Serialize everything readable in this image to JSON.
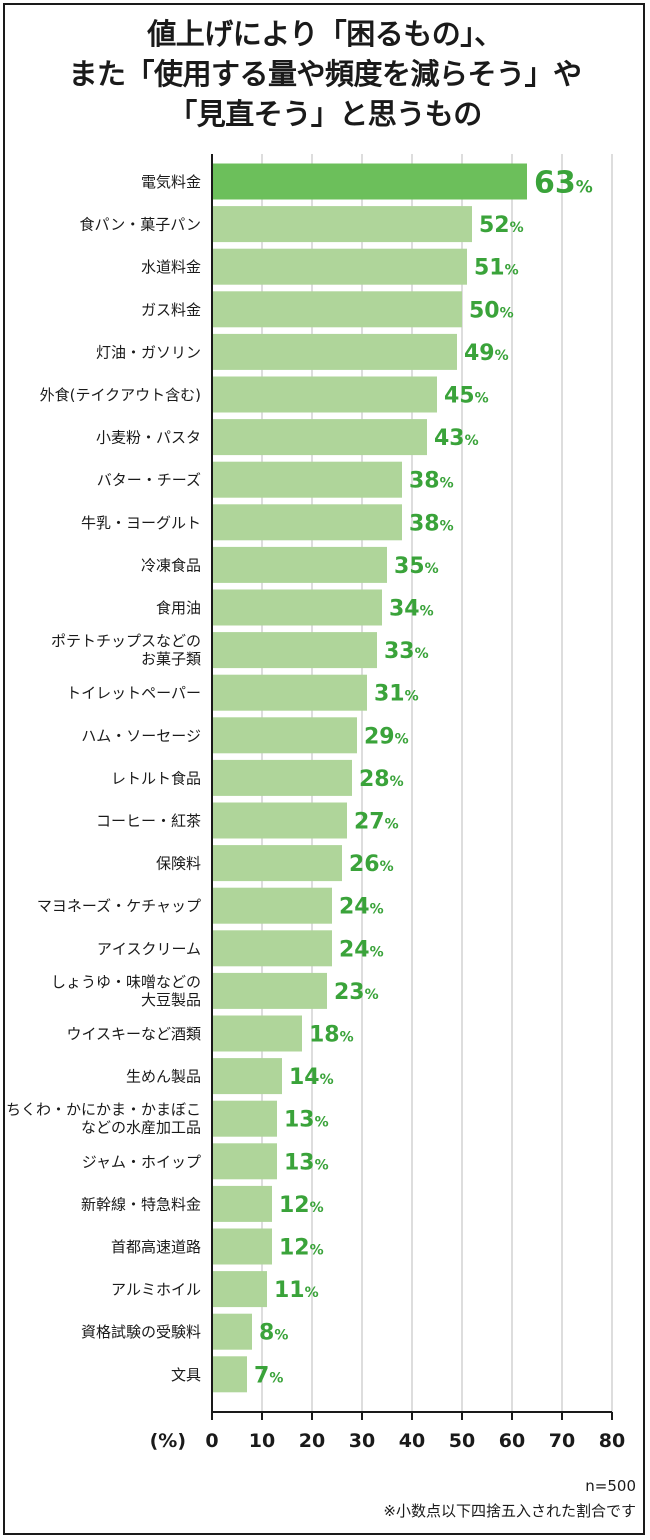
{
  "title_lines": [
    "値上げにより「困るもの」、",
    "また「使用する量や頻度を減らそう」や",
    "「見直そう」と思うもの"
  ],
  "colors": {
    "highlight_bar": "#6cbf5b",
    "bar": "#afd59a",
    "value_text": "#3aa33a",
    "grid": "#bbbbbb",
    "axis": "#1a1a1a"
  },
  "chart_data": {
    "type": "bar",
    "orientation": "horizontal",
    "categories": [
      "電気料金",
      "食パン・菓子パン",
      "水道料金",
      "ガス料金",
      "灯油・ガソリン",
      "外食(テイクアウト含む)",
      "小麦粉・パスタ",
      "バター・チーズ",
      "牛乳・ヨーグルト",
      "冷凍食品",
      "食用油",
      "ポテトチップスなどの\nお菓子類",
      "トイレットペーパー",
      "ハム・ソーセージ",
      "レトルト食品",
      "コーヒー・紅茶",
      "保険料",
      "マヨネーズ・ケチャップ",
      "アイスクリーム",
      "しょうゆ・味噌などの\n大豆製品",
      "ウイスキーなど酒類",
      "生めん製品",
      "ちくわ・かにかま・かまぼこ\nなどの水産加工品",
      "ジャム・ホイップ",
      "新幹線・特急料金",
      "首都高速道路",
      "アルミホイル",
      "資格試験の受験料",
      "文具"
    ],
    "values": [
      63,
      52,
      51,
      50,
      49,
      45,
      43,
      38,
      38,
      35,
      34,
      33,
      31,
      29,
      28,
      27,
      26,
      24,
      24,
      23,
      18,
      14,
      13,
      13,
      12,
      12,
      11,
      8,
      7
    ],
    "value_suffix": "%",
    "highlight_index": 0,
    "xlim": [
      0,
      80
    ],
    "xticks": [
      0,
      10,
      20,
      30,
      40,
      50,
      60,
      70,
      80
    ],
    "xlabel": "(%)",
    "grid": true
  },
  "notes": {
    "sample": "n=500",
    "rounding": "※小数点以下四捨五入された割合です"
  }
}
